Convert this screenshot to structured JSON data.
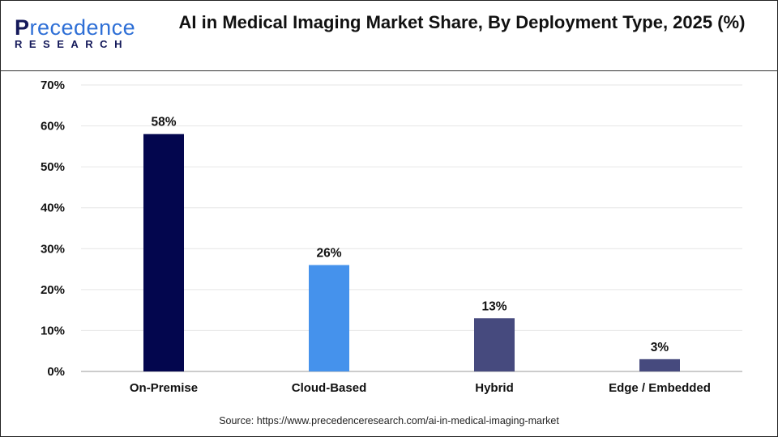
{
  "logo": {
    "text_main": "Precedence",
    "text_sub": "RESEARCH"
  },
  "chart_data": {
    "type": "bar",
    "title": "AI in Medical Imaging Market Share, By Deployment Type, 2025 (%)",
    "categories": [
      "On-Premise",
      "Cloud-Based",
      "Hybrid",
      "Edge / Embedded"
    ],
    "values": [
      58,
      26,
      13,
      3
    ],
    "data_labels": [
      "58%",
      "26%",
      "13%",
      "3%"
    ],
    "colors": [
      "#03064e",
      "#4592ec",
      "#464a7e",
      "#464a7e"
    ],
    "ylim": [
      0,
      70
    ],
    "yticks": [
      0,
      10,
      20,
      30,
      40,
      50,
      60,
      70
    ],
    "ytick_labels": [
      "0%",
      "10%",
      "20%",
      "30%",
      "40%",
      "50%",
      "60%",
      "70%"
    ],
    "xlabel": "",
    "ylabel": "",
    "grid": true
  },
  "source": "Source: https://www.precedenceresearch.com/ai-in-medical-imaging-market"
}
